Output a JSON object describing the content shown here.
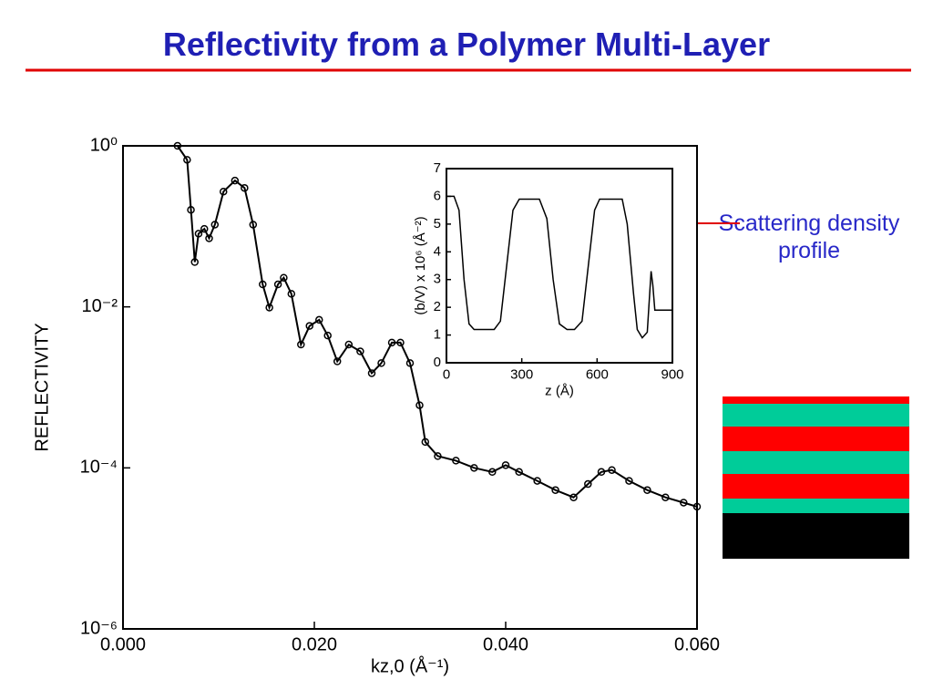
{
  "title": "Reflectivity from a Polymer Multi-Layer",
  "annotation": "Scattering density profile",
  "chart_data": [
    {
      "type": "line",
      "ylog": true,
      "markers": true,
      "xlabel": "kz,0 (Å⁻¹)",
      "ylabel": "REFLECTIVITY",
      "xlim": [
        0,
        0.06
      ],
      "ylim": [
        1e-06,
        1
      ],
      "xticks": [
        {
          "value": 0,
          "label": "0.000"
        },
        {
          "value": 0.02,
          "label": "0.020"
        },
        {
          "value": 0.04,
          "label": "0.040"
        },
        {
          "value": 0.06,
          "label": "0.060"
        }
      ],
      "yticks": [
        {
          "value": 1,
          "label": "10⁰"
        },
        {
          "value": 0.01,
          "label": "10⁻²"
        },
        {
          "value": 0.0001,
          "label": "10⁻⁴"
        },
        {
          "value": 1e-06,
          "label": "10⁻⁶"
        }
      ],
      "x": [
        0.0057,
        0.0067,
        0.0071,
        0.0075,
        0.0079,
        0.0085,
        0.009,
        0.0096,
        0.0105,
        0.0117,
        0.0127,
        0.0136,
        0.0146,
        0.0153,
        0.0162,
        0.0168,
        0.0176,
        0.0186,
        0.0195,
        0.0205,
        0.0214,
        0.0224,
        0.0236,
        0.0248,
        0.026,
        0.027,
        0.0281,
        0.029,
        0.03,
        0.031,
        0.0316,
        0.0329,
        0.0348,
        0.0367,
        0.0386,
        0.04,
        0.0414,
        0.0433,
        0.0452,
        0.0471,
        0.0486,
        0.05,
        0.0511,
        0.0529,
        0.0548,
        0.0567,
        0.0586,
        0.06
      ],
      "series": [
        {
          "color": "#000000",
          "values": [
            1.0,
            0.67,
            0.16,
            0.036,
            0.081,
            0.093,
            0.071,
            0.105,
            0.27,
            0.37,
            0.3,
            0.105,
            0.019,
            0.0098,
            0.019,
            0.023,
            0.0145,
            0.0034,
            0.0058,
            0.0069,
            0.0044,
            0.0021,
            0.0034,
            0.0028,
            0.0015,
            0.002,
            0.0036,
            0.0036,
            0.002,
            0.0006,
            0.00021,
            0.00014,
            0.000123,
            0.0001,
            8.9e-05,
            0.000108,
            8.9e-05,
            6.9e-05,
            5.3e-05,
            4.3e-05,
            6.3e-05,
            8.9e-05,
            9.4e-05,
            6.9e-05,
            5.3e-05,
            4.3e-05,
            3.7e-05,
            3.3e-05
          ]
        }
      ]
    },
    {
      "type": "line",
      "ylog": false,
      "markers": false,
      "xlabel": "z (Å)",
      "ylabel": "(b/V) x 10⁶ (Å⁻²)",
      "xlim": [
        0,
        900
      ],
      "ylim": [
        0,
        7
      ],
      "xticks": [
        0,
        300,
        600,
        900
      ],
      "yticks": [
        0,
        1,
        2,
        3,
        4,
        5,
        6,
        7
      ],
      "x": [
        0,
        30,
        50,
        70,
        90,
        110,
        190,
        215,
        240,
        265,
        290,
        370,
        400,
        425,
        450,
        480,
        510,
        540,
        565,
        590,
        610,
        700,
        720,
        745,
        760,
        780,
        800,
        815,
        822,
        830,
        900
      ],
      "series": [
        {
          "color": "#000000",
          "values": [
            6,
            6,
            5.5,
            3,
            1.4,
            1.2,
            1.2,
            1.5,
            3.5,
            5.5,
            5.9,
            5.9,
            5.2,
            3,
            1.4,
            1.2,
            1.2,
            1.5,
            3.5,
            5.5,
            5.9,
            5.9,
            5,
            2.5,
            1.2,
            0.9,
            1.1,
            3.3,
            2.8,
            1.9,
            1.9
          ]
        }
      ]
    }
  ]
}
